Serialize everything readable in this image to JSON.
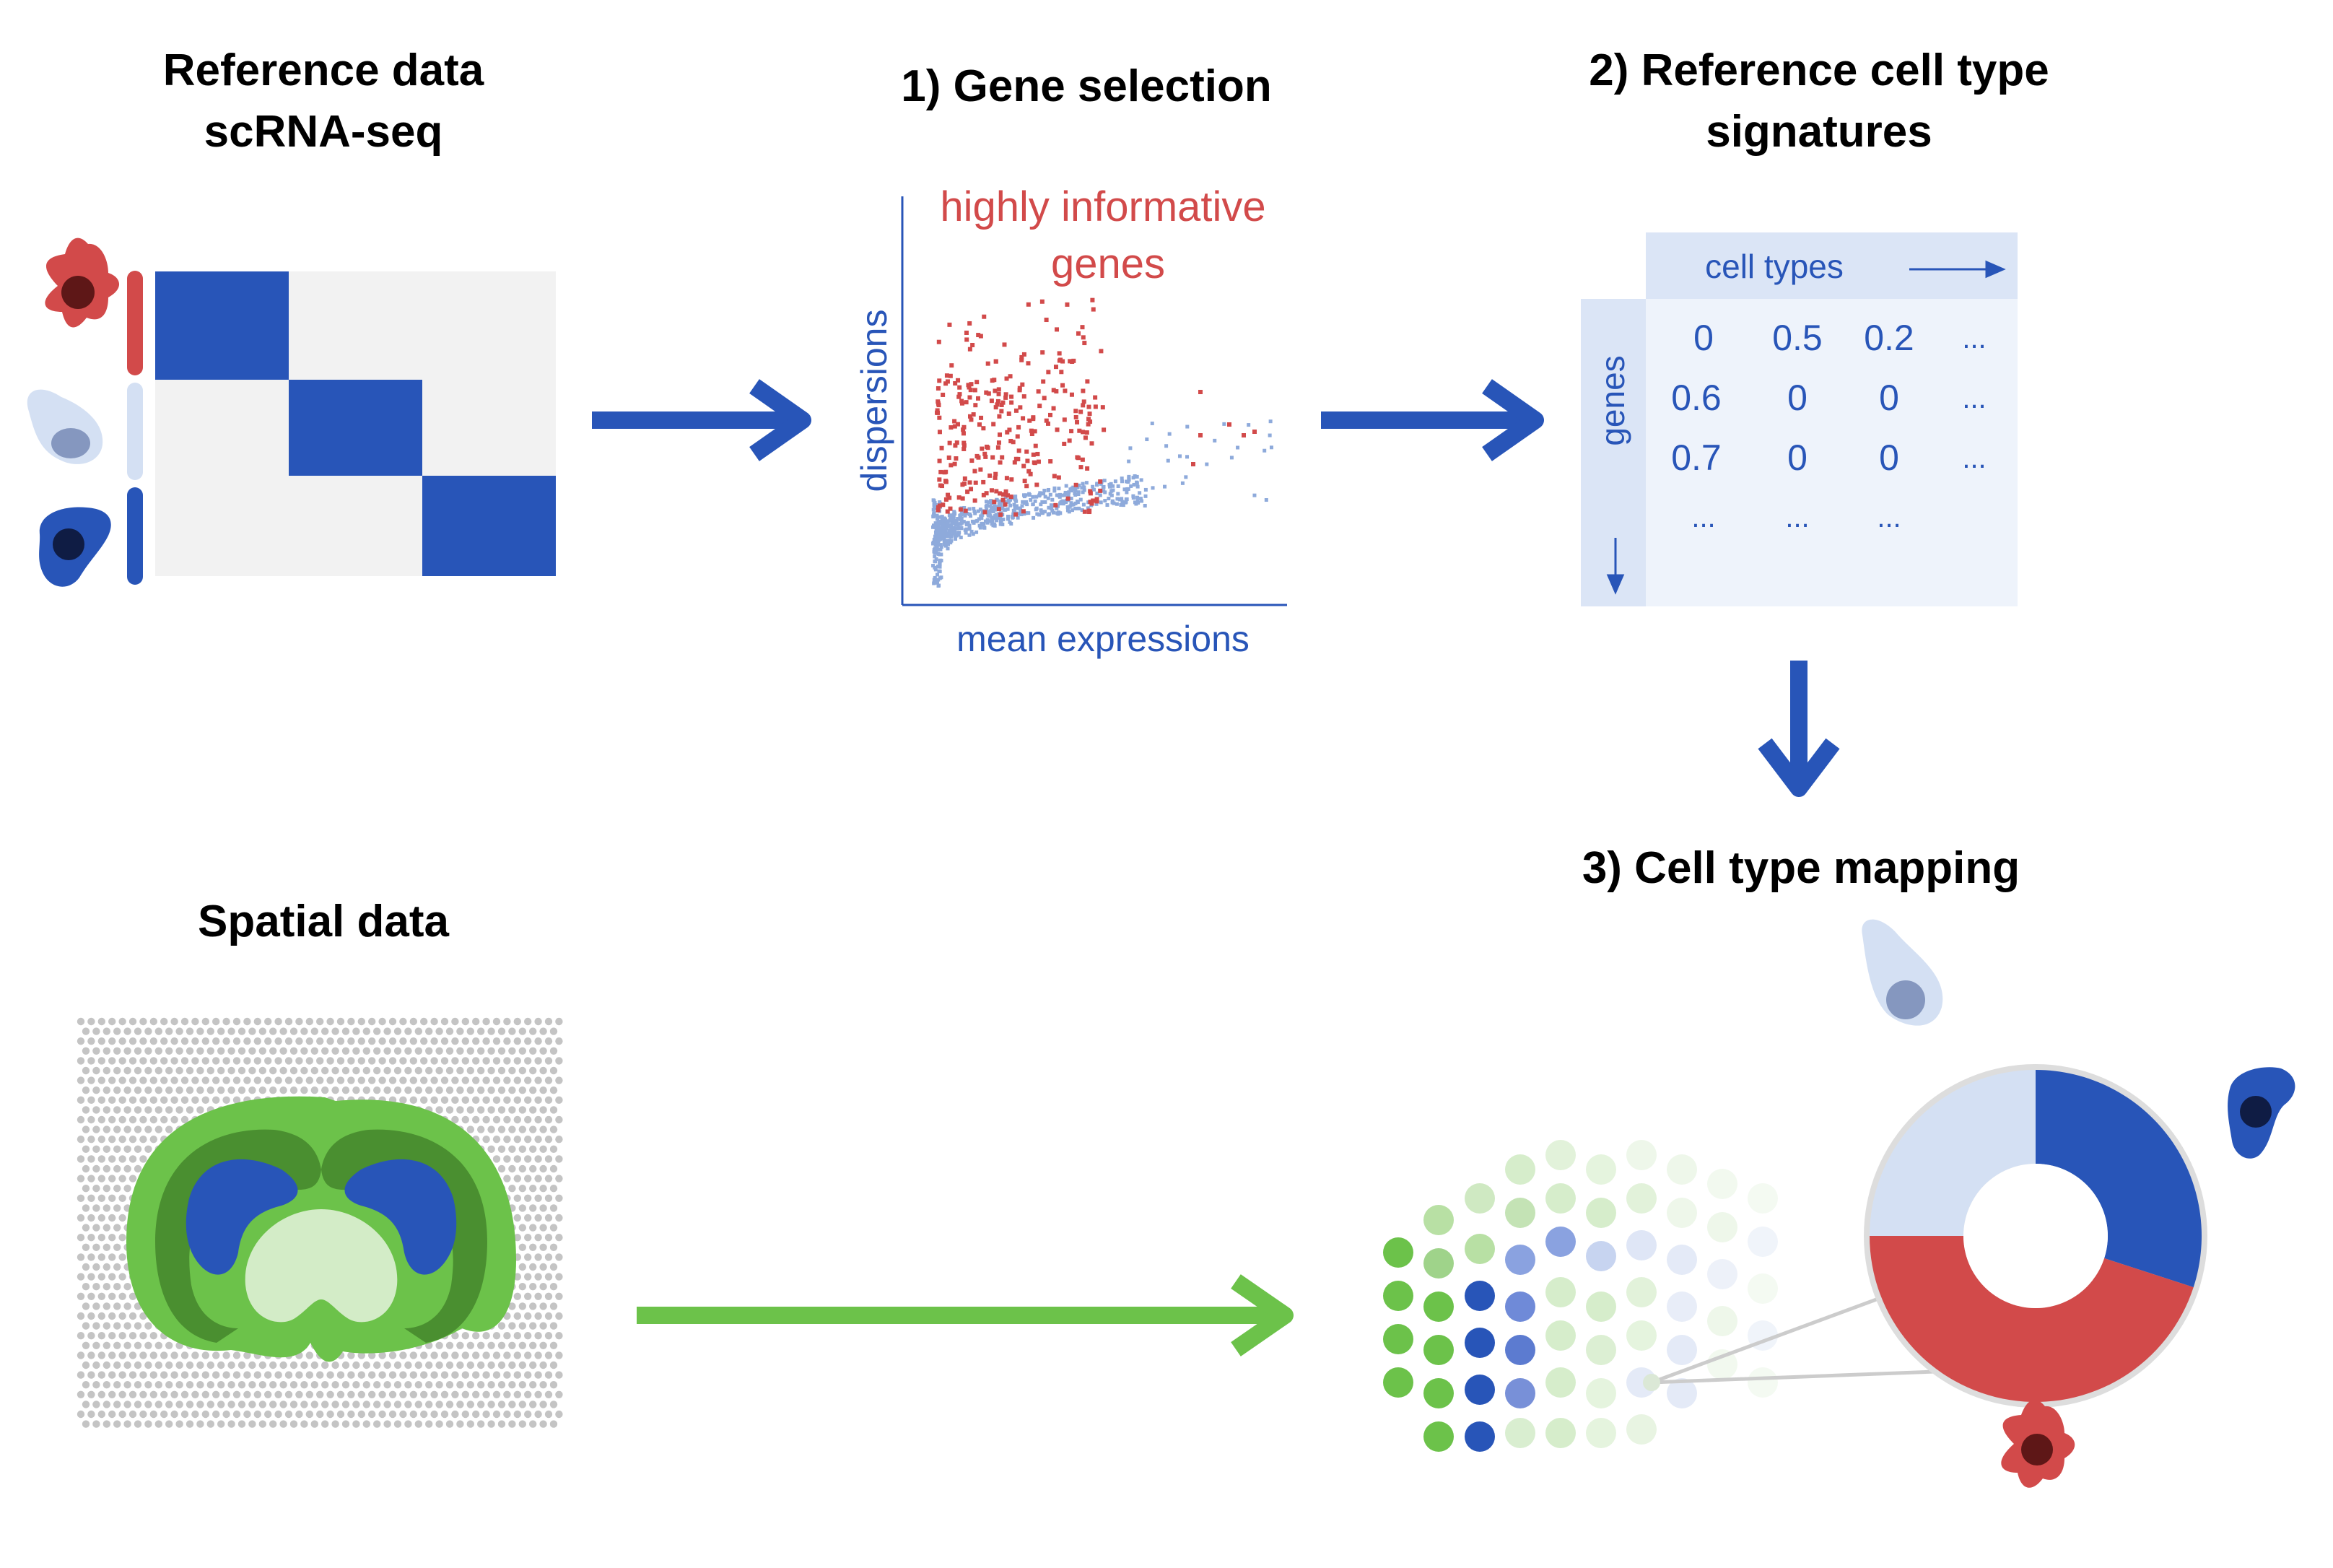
{
  "headings": {
    "reference": [
      "Reference data",
      "scRNA-seq"
    ],
    "gene_selection": "1) Gene selection",
    "signatures": [
      "2) Reference cell type",
      "signatures"
    ],
    "spatial": "Spatial data",
    "mapping": "3) Cell type mapping"
  },
  "scatter": {
    "annotation": [
      "highly informative",
      "genes"
    ],
    "xlabel": "mean expressions",
    "ylabel": "dispersions"
  },
  "signature_table": {
    "col_header": "cell types",
    "row_header": "genes",
    "rows": [
      [
        "0",
        "0.5",
        "0.2",
        "..."
      ],
      [
        "0.6",
        "0",
        "0",
        "..."
      ],
      [
        "0.7",
        "0",
        "0",
        "..."
      ],
      [
        "...",
        "...",
        "...",
        ""
      ]
    ]
  },
  "pie_fractions": {
    "dark_blue": 0.3,
    "red": 0.45,
    "light_blue": 0.25
  },
  "colors": {
    "dark_blue": "#2855b8",
    "light_blue": "#d4e0f3",
    "red": "#d24a4a",
    "dark_red": "#5e1717",
    "green": "#6cc24a",
    "dark_green": "#4a8f30",
    "light_green": "#d3ecc7",
    "gray": "#c4c4c4",
    "panel_bg": "#eef3fb",
    "panel_header": "#dbe5f6"
  }
}
